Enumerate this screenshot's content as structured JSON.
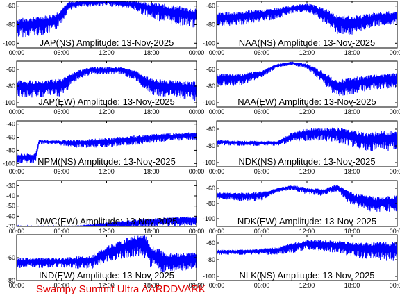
{
  "footer": "Swampy Summit Ultra AARDDVARK",
  "colors": {
    "signal": "#0000ff",
    "footer": "#e00000",
    "axes": "#000000"
  },
  "chart_data": [
    {
      "type": "line",
      "title": "JAP(NS) Amplitude: 13-Nov-2025",
      "x_ticks": [
        "00:00",
        "06:00",
        "12:00",
        "18:00",
        "00:00"
      ],
      "y_ticks": [
        "-60",
        "-80",
        "-100"
      ],
      "ylim": [
        -105,
        -55
      ],
      "x": [
        "00:00",
        "03:00",
        "05:00",
        "06:00",
        "07:00",
        "09:00",
        "12:00",
        "15:00",
        "16:00",
        "18:00",
        "21:00",
        "24:00"
      ],
      "values": [
        -80,
        -78,
        -75,
        -68,
        -58,
        -56,
        -55,
        -57,
        -58,
        -62,
        -66,
        -70
      ],
      "spread": [
        14,
        14,
        14,
        10,
        6,
        5,
        5,
        6,
        8,
        12,
        14,
        14
      ]
    },
    {
      "type": "line",
      "title": "NAA(NS) Amplitude: 13-Nov-2025",
      "x_ticks": [
        "00:00",
        "06:00",
        "12:00",
        "18:00",
        "00:00"
      ],
      "y_ticks": [
        "-60",
        "-80",
        "-100"
      ],
      "ylim": [
        -105,
        -55
      ],
      "x": [
        "00:00",
        "04:00",
        "08:00",
        "10:00",
        "12:00",
        "14:00",
        "16:00",
        "18:00",
        "21:00",
        "24:00"
      ],
      "values": [
        -72,
        -70,
        -66,
        -62,
        -60,
        -66,
        -76,
        -78,
        -72,
        -70
      ],
      "spread": [
        10,
        10,
        8,
        6,
        6,
        10,
        14,
        14,
        10,
        10
      ]
    },
    {
      "type": "line",
      "title": "JAP(EW) Amplitude: 13-Nov-2025",
      "x_ticks": [
        "00:00",
        "06:00",
        "12:00",
        "18:00",
        "00:00"
      ],
      "y_ticks": [
        "-60",
        "-80",
        "-100"
      ],
      "ylim": [
        -105,
        -50
      ],
      "x": [
        "00:00",
        "03:00",
        "06:00",
        "08:00",
        "10:00",
        "14:00",
        "16:00",
        "18:00",
        "21:00",
        "24:00"
      ],
      "values": [
        -80,
        -80,
        -78,
        -65,
        -60,
        -60,
        -66,
        -78,
        -80,
        -82
      ],
      "spread": [
        14,
        14,
        14,
        8,
        6,
        6,
        8,
        14,
        14,
        16
      ]
    },
    {
      "type": "line",
      "title": "NAA(EW) Amplitude: 13-Nov-2025",
      "x_ticks": [
        "00:00",
        "06:00",
        "12:00",
        "18:00",
        "00:00"
      ],
      "y_ticks": [
        "-60",
        "-80",
        "-100"
      ],
      "ylim": [
        -105,
        -50
      ],
      "x": [
        "00:00",
        "03:00",
        "06:00",
        "08:00",
        "10:00",
        "12:00",
        "14:00",
        "16:00",
        "18:00",
        "21:00",
        "24:00"
      ],
      "values": [
        -70,
        -70,
        -64,
        -55,
        -52,
        -55,
        -66,
        -80,
        -76,
        -72,
        -70
      ],
      "spread": [
        10,
        10,
        6,
        3,
        3,
        4,
        10,
        14,
        14,
        12,
        12
      ]
    },
    {
      "type": "line",
      "title": "NPM(NS) Amplitude: 13-Nov-2025",
      "x_ticks": [
        "00:00",
        "06:00",
        "12:00",
        "18:00",
        "00:00"
      ],
      "y_ticks": [
        "-40",
        "-60",
        "-80",
        "-100"
      ],
      "ylim": [
        -105,
        -35
      ],
      "x": [
        "00:00",
        "01:30",
        "02:30",
        "03:00",
        "05:00",
        "08:00",
        "12:00",
        "16:00",
        "20:00",
        "24:00"
      ],
      "values": [
        -90,
        -90,
        -90,
        -66,
        -67,
        -68,
        -66,
        -62,
        -58,
        -56
      ],
      "spread": [
        10,
        10,
        10,
        4,
        4,
        8,
        10,
        10,
        8,
        8
      ]
    },
    {
      "type": "line",
      "title": "NDK(NS) Amplitude: 13-Nov-2025",
      "x_ticks": [
        "00:00",
        "06:00",
        "12:00",
        "18:00",
        "00:00"
      ],
      "y_ticks": [
        "-60",
        "-80",
        "-100"
      ],
      "ylim": [
        -105,
        -50
      ],
      "x": [
        "00:00",
        "04:00",
        "08:00",
        "10:00",
        "12:00",
        "16:00",
        "18:00",
        "20:00",
        "22:00",
        "24:00"
      ],
      "values": [
        -75,
        -76,
        -76,
        -68,
        -64,
        -64,
        -68,
        -72,
        -70,
        -70
      ],
      "spread": [
        4,
        4,
        4,
        8,
        10,
        12,
        14,
        16,
        16,
        16
      ]
    },
    {
      "type": "line",
      "title": "NWC(EW) Amplitude: 13-Nov-2025",
      "x_ticks": [
        "00:00",
        "06:00",
        "12:00",
        "18:00",
        "00:00"
      ],
      "y_ticks": [
        "-30",
        "-40",
        "-50",
        "-60",
        "-70"
      ],
      "ylim": [
        -70,
        -25
      ],
      "x": [
        "00:00",
        "08:00",
        "12:00",
        "16:00",
        "20:00",
        "24:00"
      ],
      "values": [
        -70,
        -70,
        -68,
        -66,
        -64,
        -63
      ],
      "spread": [
        1,
        2,
        4,
        6,
        6,
        6
      ]
    },
    {
      "type": "line",
      "title": "NDK(EW) Amplitude: 13-Nov-2025",
      "x_ticks": [
        "00:00",
        "06:00",
        "12:00",
        "18:00",
        "00:00"
      ],
      "y_ticks": [
        "-60",
        "-80",
        "-100"
      ],
      "ylim": [
        -110,
        -50
      ],
      "x": [
        "00:00",
        "04:00",
        "06:00",
        "08:00",
        "10:00",
        "12:00",
        "14:00",
        "16:00",
        "18:00",
        "21:00",
        "24:00"
      ],
      "values": [
        -68,
        -70,
        -68,
        -62,
        -58,
        -62,
        -64,
        -58,
        -72,
        -78,
        -76
      ],
      "spread": [
        6,
        8,
        8,
        4,
        4,
        6,
        6,
        6,
        12,
        14,
        14
      ]
    },
    {
      "type": "line",
      "title": "IND(EW) Amplitude: 13-Nov-2025",
      "x_ticks": [
        "00:00",
        "06:00",
        "12:00",
        "18:00",
        "00:00"
      ],
      "y_ticks": [
        "-60",
        "-80"
      ],
      "ylim": [
        -80,
        -40
      ],
      "x": [
        "00:00",
        "06:00",
        "10:00",
        "12:00",
        "15:00",
        "17:00",
        "18:00",
        "20:00",
        "24:00"
      ],
      "values": [
        -63,
        -63,
        -62,
        -55,
        -48,
        -46,
        -56,
        -62,
        -60
      ],
      "spread": [
        6,
        6,
        8,
        10,
        12,
        14,
        14,
        12,
        10
      ]
    },
    {
      "type": "line",
      "title": "NLK(NS) Amplitude: 13-Nov-2025",
      "x_ticks": [
        "00:00",
        "06:00",
        "12:00",
        "18:00",
        "00:00"
      ],
      "y_ticks": [
        "-60",
        "-80",
        "-100"
      ],
      "ylim": [
        -105,
        -50
      ],
      "x": [
        "00:00",
        "04:00",
        "08:00",
        "10:00",
        "12:00",
        "16:00",
        "18:00",
        "20:00",
        "24:00"
      ],
      "values": [
        -70,
        -70,
        -68,
        -64,
        -60,
        -62,
        -64,
        -66,
        -66
      ],
      "spread": [
        4,
        4,
        6,
        8,
        8,
        10,
        12,
        14,
        16
      ]
    }
  ]
}
